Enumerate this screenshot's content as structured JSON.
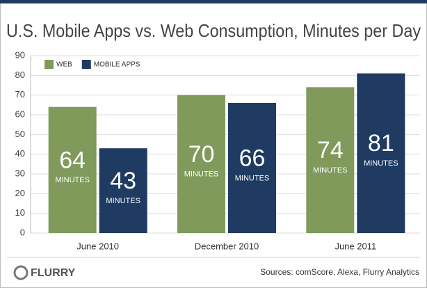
{
  "chart_data": {
    "type": "bar",
    "title": "U.S. Mobile Apps vs. Web Consumption, Minutes per Day",
    "categories": [
      "June 2010",
      "December 2010",
      "June 2011"
    ],
    "series": [
      {
        "name": "WEB",
        "color": "#7f9a5b",
        "values": [
          64,
          70,
          74
        ]
      },
      {
        "name": "MOBILE APPS",
        "color": "#1f3b61",
        "values": [
          43,
          66,
          81
        ]
      }
    ],
    "unit_label": "MINUTES",
    "ylim": [
      0,
      90
    ],
    "yticks": [
      0,
      10,
      20,
      30,
      40,
      50,
      60,
      70,
      80,
      90
    ],
    "grid": true,
    "legend": "top-left",
    "logo": "FLURRY",
    "source": "Sources: comScore, Alexa, Flurry Analytics"
  }
}
